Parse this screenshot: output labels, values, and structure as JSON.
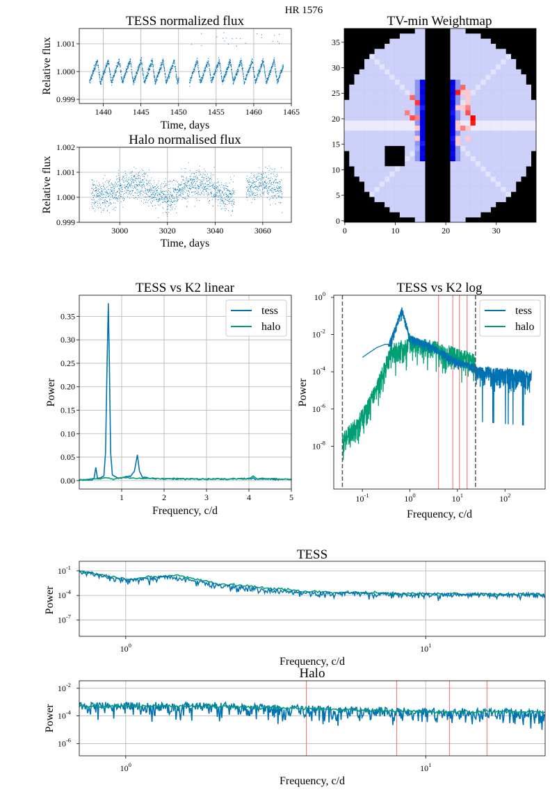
{
  "figure": {
    "suptitle": "HR 1576"
  },
  "colors": {
    "tess": "#0072b2",
    "halo": "#009e73",
    "grid": "#b0b0b0",
    "redline": "#f08080",
    "vline": "#555555"
  },
  "panels": {
    "tess_flux": {
      "title": "TESS normalized flux",
      "xlabel": "Time, days",
      "ylabel": "Relative flux",
      "xticks": [
        "1440",
        "1445",
        "1450",
        "1455",
        "1460",
        "1465"
      ],
      "yticks": [
        "0.999",
        "1.000",
        "1.001"
      ]
    },
    "halo_flux": {
      "title": "Halo normalised flux",
      "xlabel": "Time, days",
      "ylabel": "Relative flux",
      "xticks": [
        "3000",
        "3020",
        "3040",
        "3060"
      ],
      "yticks": [
        "0.999",
        "1.000",
        "1.001",
        "1.002"
      ]
    },
    "weightmap": {
      "title": "TV-min Weightmap",
      "xticks": [
        "0",
        "10",
        "20",
        "30"
      ],
      "yticks": [
        "0",
        "5",
        "10",
        "15",
        "20",
        "25",
        "30",
        "35"
      ]
    },
    "linear": {
      "title": "TESS vs K2 linear",
      "xlabel": "Frequency, c/d",
      "ylabel": "Power",
      "xticks": [
        "1",
        "2",
        "3",
        "4",
        "5"
      ],
      "yticks": [
        "0.00",
        "0.05",
        "0.10",
        "0.15",
        "0.20",
        "0.25",
        "0.30",
        "0.35"
      ],
      "legend": [
        "tess",
        "halo"
      ]
    },
    "log": {
      "title": "TESS vs K2 log",
      "xlabel": "Frequency, c/d",
      "ylabel": "Power",
      "legend": [
        "tess",
        "halo"
      ]
    },
    "tess_bottom": {
      "title": "TESS",
      "xlabel": "Frequency, c/d",
      "ylabel": "Power"
    },
    "halo_bottom": {
      "title": "Halo",
      "xlabel": "Frequency, c/d",
      "ylabel": "Power"
    }
  },
  "chart_data": [
    {
      "type": "scatter",
      "title": "TESS normalized flux",
      "xlabel": "Time, days",
      "ylabel": "Relative flux",
      "xlim": [
        1436.8,
        1465
      ],
      "ylim": [
        0.99885,
        1.00155
      ],
      "grid": true,
      "segments": [
        [
          1438.1,
          1450.0
        ],
        [
          1451.4,
          1463.9
        ]
      ],
      "baseline": 1.0,
      "amplitude": 0.0004,
      "period_days": 1.46
    },
    {
      "type": "scatter",
      "title": "Halo normalised flux",
      "xlabel": "Time, days",
      "ylabel": "Relative flux",
      "xlim": [
        2983,
        3072
      ],
      "ylim": [
        0.999,
        1.002
      ],
      "grid": true,
      "segments": [
        [
          2988,
          3048
        ],
        [
          3053,
          3068
        ]
      ]
    },
    {
      "type": "heatmap",
      "title": "TV-min Weightmap",
      "xlim": [
        0,
        38
      ],
      "ylim": [
        0,
        38
      ],
      "note": "circular aperture; saturated column masked black around x=16-20; star mask near (8-11, 11-15); red/blue residuals near columns 14-16 and 21-25, rows 14-26"
    },
    {
      "type": "line",
      "title": "TESS vs K2 linear",
      "xlabel": "Frequency, c/d",
      "ylabel": "Power",
      "xlim": [
        0,
        5
      ],
      "ylim": [
        -0.018,
        0.395
      ],
      "grid": true,
      "legend": "top-right",
      "series": [
        {
          "name": "tess",
          "points": [
            [
              0,
              0
            ],
            [
              0.3,
              0.001
            ],
            [
              0.35,
              0.005
            ],
            [
              0.39,
              0.028
            ],
            [
              0.43,
              0.005
            ],
            [
              0.5,
              0.006
            ],
            [
              0.58,
              0.01
            ],
            [
              0.62,
              0.06
            ],
            [
              0.655,
              0.25
            ],
            [
              0.685,
              0.378
            ],
            [
              0.71,
              0.25
            ],
            [
              0.74,
              0.06
            ],
            [
              0.78,
              0.012
            ],
            [
              0.9,
              0.006
            ],
            [
              1.0,
              0.005
            ],
            [
              1.2,
              0.008
            ],
            [
              1.3,
              0.02
            ],
            [
              1.37,
              0.055
            ],
            [
              1.42,
              0.02
            ],
            [
              1.5,
              0.005
            ],
            [
              1.8,
              0.003
            ],
            [
              2.5,
              0.002
            ],
            [
              3.5,
              0.002
            ],
            [
              4.05,
              0.003
            ],
            [
              4.1,
              0.006
            ],
            [
              4.15,
              0.002
            ],
            [
              5,
              0.001
            ]
          ]
        },
        {
          "name": "halo",
          "points": [
            [
              0,
              0
            ],
            [
              0.5,
              0.003
            ],
            [
              0.65,
              0.006
            ],
            [
              0.8,
              0.002
            ],
            [
              1.0,
              0.005
            ],
            [
              1.5,
              0.004
            ],
            [
              2.0,
              0.003
            ],
            [
              3.0,
              0.002
            ],
            [
              4.0,
              0.003
            ],
            [
              4.1,
              0.01
            ],
            [
              4.2,
              0.003
            ],
            [
              5,
              0.002
            ]
          ]
        }
      ]
    },
    {
      "type": "line",
      "title": "TESS vs K2 log",
      "xlabel": "Frequency, c/d",
      "ylabel": "Power",
      "xscale": "log",
      "yscale": "log",
      "xlim": [
        0.025,
        700
      ],
      "ylim": [
        5e-11,
        1.3
      ],
      "legend": "top-right",
      "xticks": [
        0.1,
        1,
        10,
        100
      ],
      "yticks": [
        1e-08,
        1e-06,
        0.0001,
        0.01,
        1
      ],
      "vlines_black": [
        0.038,
        24
      ],
      "vlines_red": [
        4.0,
        8.0,
        11.0,
        16.0
      ],
      "series": [
        {
          "name": "tess",
          "xrange": [
            0.1,
            360
          ],
          "envelope": [
            [
              0.1,
              0.0006
            ],
            [
              0.2,
              0.002
            ],
            [
              0.35,
              0.003
            ],
            [
              0.68,
              0.3
            ],
            [
              1.0,
              0.01
            ],
            [
              3,
              0.003
            ],
            [
              10,
              0.0005
            ],
            [
              30,
              0.0002
            ],
            [
              360,
              0.00012
            ]
          ]
        },
        {
          "name": "halo",
          "xrange": [
            0.038,
            24
          ],
          "envelope": [
            [
              0.038,
              5e-08
            ],
            [
              0.1,
              1e-06
            ],
            [
              0.2,
              3e-05
            ],
            [
              0.4,
              0.003
            ],
            [
              1.0,
              0.008
            ],
            [
              3,
              0.005
            ],
            [
              10,
              0.002
            ],
            [
              24,
              0.001
            ]
          ]
        }
      ]
    },
    {
      "type": "line",
      "title": "TESS",
      "xlabel": "Frequency, c/d",
      "ylabel": "Power",
      "xscale": "log",
      "yscale": "log",
      "xlim": [
        0.7,
        25
      ],
      "ylim": [
        1e-09,
        1.5
      ],
      "xticks": [
        1,
        10
      ],
      "yticks": [
        1e-07,
        0.0001,
        0.1
      ],
      "series": [
        {
          "name": "tess",
          "envelope": [
            [
              0.7,
              0.15
            ],
            [
              1.0,
              0.01
            ],
            [
              1.4,
              0.03
            ],
            [
              2,
              0.003
            ],
            [
              4,
              0.0003
            ],
            [
              10,
              0.0002
            ],
            [
              25,
              0.0002
            ]
          ]
        },
        {
          "name": "halo",
          "envelope": [
            [
              0.7,
              0.1
            ],
            [
              1.0,
              0.01
            ],
            [
              1.5,
              0.03
            ],
            [
              2,
              0.003
            ],
            [
              4,
              0.0003
            ],
            [
              10,
              0.00015
            ],
            [
              25,
              0.00015
            ]
          ]
        }
      ]
    },
    {
      "type": "line",
      "title": "Halo",
      "xlabel": "Frequency, c/d",
      "ylabel": "Power",
      "xscale": "log",
      "yscale": "log",
      "xlim": [
        0.7,
        25
      ],
      "ylim": [
        1.3e-07,
        0.035
      ],
      "xticks": [
        1,
        10
      ],
      "yticks": [
        1e-06,
        0.0001,
        0.01
      ],
      "vlines_red": [
        4.0,
        8.0,
        12.0,
        16.0
      ],
      "series": [
        {
          "name": "tess",
          "envelope": [
            [
              0.7,
              0.001
            ],
            [
              2,
              0.001
            ],
            [
              5,
              0.0005
            ],
            [
              25,
              0.0003
            ]
          ]
        },
        {
          "name": "halo",
          "envelope": [
            [
              0.7,
              0.0005
            ],
            [
              2,
              0.0005
            ],
            [
              10,
              0.0002
            ],
            [
              25,
              0.0002
            ]
          ]
        }
      ]
    }
  ]
}
